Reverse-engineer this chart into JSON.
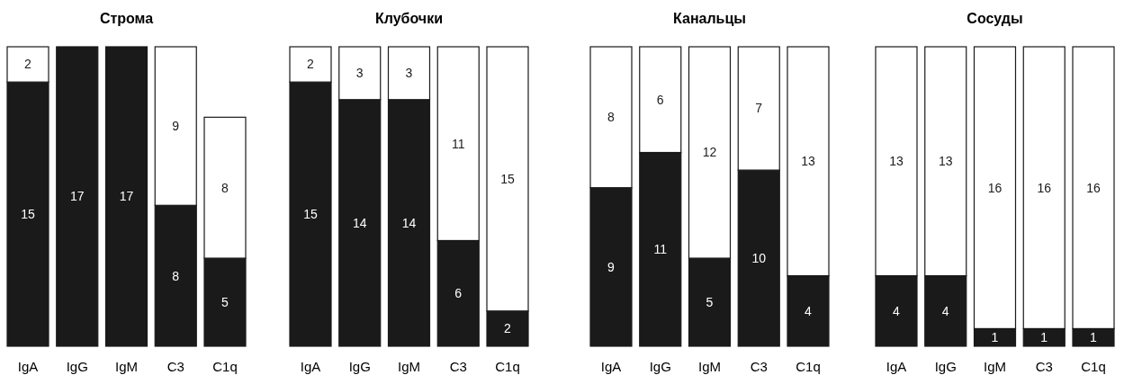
{
  "chart_data": [
    {
      "type": "bar",
      "title": "Строма",
      "categories": [
        "IgA",
        "IgG",
        "IgM",
        "C3",
        "C1q"
      ],
      "stacked": true,
      "data_labels": true,
      "series": [
        {
          "color": "#1a1a1a",
          "values": [
            15,
            17,
            17,
            8,
            5
          ]
        },
        {
          "color": "#ffffff",
          "values": [
            2,
            null,
            null,
            9,
            8
          ]
        }
      ]
    },
    {
      "type": "bar",
      "title": "Клубочки",
      "categories": [
        "IgA",
        "IgG",
        "IgM",
        "C3",
        "C1q"
      ],
      "stacked": true,
      "data_labels": true,
      "series": [
        {
          "color": "#1a1a1a",
          "values": [
            15,
            14,
            14,
            6,
            2
          ]
        },
        {
          "color": "#ffffff",
          "values": [
            2,
            3,
            3,
            11,
            15
          ]
        }
      ]
    },
    {
      "type": "bar",
      "title": "Канальцы",
      "categories": [
        "IgA",
        "IgG",
        "IgM",
        "C3",
        "C1q"
      ],
      "stacked": true,
      "data_labels": true,
      "series": [
        {
          "color": "#1a1a1a",
          "values": [
            9,
            11,
            5,
            10,
            4
          ]
        },
        {
          "color": "#ffffff",
          "values": [
            8,
            6,
            12,
            7,
            13
          ]
        }
      ]
    },
    {
      "type": "bar",
      "title": "Сосуды",
      "categories": [
        "IgA",
        "IgG",
        "IgM",
        "C3",
        "C1q"
      ],
      "stacked": true,
      "data_labels": true,
      "series": [
        {
          "color": "#1a1a1a",
          "values": [
            4,
            4,
            1,
            1,
            1
          ]
        },
        {
          "color": "#ffffff",
          "values": [
            13,
            13,
            16,
            16,
            16
          ]
        }
      ]
    }
  ]
}
